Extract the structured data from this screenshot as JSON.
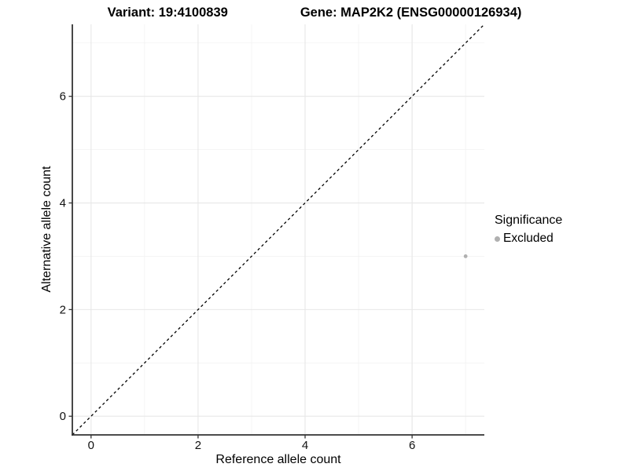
{
  "title": {
    "variant": "Variant: 19:4100839",
    "gene": "Gene: MAP2K2 (ENSG00000126934)"
  },
  "chart_data": {
    "type": "scatter",
    "title": "Variant: 19:4100839   Gene: MAP2K2 (ENSG00000126934)",
    "xlabel": "Reference allele count",
    "ylabel": "Alternative allele count",
    "xlim": [
      -0.35,
      7.35
    ],
    "ylim": [
      -0.35,
      7.35
    ],
    "x_ticks": [
      0,
      2,
      4,
      6
    ],
    "y_ticks": [
      0,
      2,
      4,
      6
    ],
    "x_minor_ticks": [
      1,
      3,
      5,
      7
    ],
    "y_minor_ticks": [
      1,
      3,
      5,
      7
    ],
    "grid": true,
    "points": [
      {
        "x": 7,
        "y": 3,
        "series": "Excluded",
        "color": "#b0b0b0"
      }
    ],
    "reference_line": {
      "type": "identity",
      "style": "dashed",
      "color": "#000000"
    },
    "legend": {
      "title": "Significance",
      "position": "right",
      "items": [
        {
          "label": "Excluded",
          "color": "#b0b0b0",
          "marker": "circle"
        }
      ]
    },
    "colors": {
      "axis_line": "#333333",
      "major_grid": "#e7e7e7",
      "minor_grid": "#f2f2f2",
      "panel_background": "#ffffff",
      "text": "#000000"
    }
  }
}
